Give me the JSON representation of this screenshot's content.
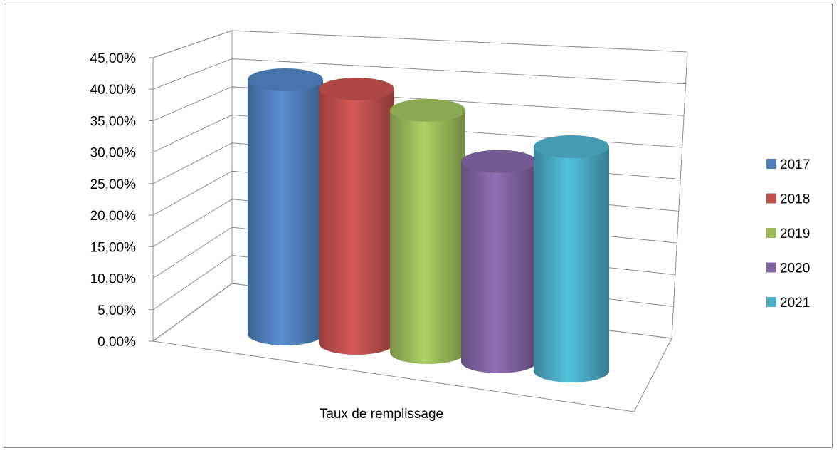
{
  "chart_data": {
    "type": "bar",
    "style": "3d-cylinder",
    "categories": [
      "Taux de remplissage"
    ],
    "series": [
      {
        "name": "2017",
        "values": [
          0.425
        ],
        "color": "#4f81bd"
      },
      {
        "name": "2018",
        "values": [
          0.425
        ],
        "color": "#c0504d"
      },
      {
        "name": "2019",
        "values": [
          0.405
        ],
        "color": "#9bbb59"
      },
      {
        "name": "2020",
        "values": [
          0.335
        ],
        "color": "#8064a2"
      },
      {
        "name": "2021",
        "values": [
          0.375
        ],
        "color": "#4bacc6"
      }
    ],
    "ylim": [
      0,
      0.45
    ],
    "y_ticks": [
      "0,00%",
      "5,00%",
      "10,00%",
      "15,00%",
      "20,00%",
      "25,00%",
      "30,00%",
      "35,00%",
      "40,00%",
      "45,00%"
    ],
    "grid": true,
    "legend_position": "right"
  }
}
